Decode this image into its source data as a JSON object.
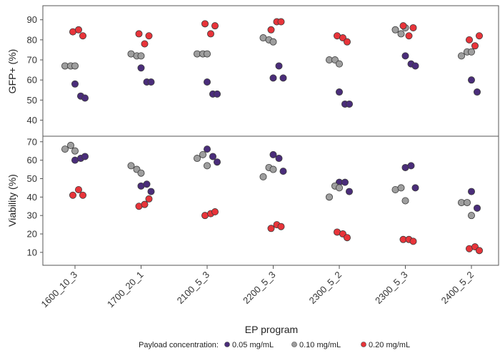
{
  "chart_data": {
    "type": "scatter",
    "xlabel": "EP program",
    "categories": [
      "1600_10_3",
      "1700_20_1",
      "2100_5_3",
      "2200_5_3",
      "2300_5_2",
      "2300_5_3",
      "2400_5_2"
    ],
    "legend": {
      "title": "Payload concentration:",
      "placement": "bottom",
      "entries": [
        {
          "label": "0.05 mg/mL",
          "color": "#4a2d7a"
        },
        {
          "label": "0.10 mg/mL",
          "color": "#9e9e9e"
        },
        {
          "label": "0.20 mg/mL",
          "color": "#e8343a"
        }
      ]
    },
    "panels": [
      {
        "ylabel": "GFP+ (%)",
        "ylim": [
          32,
          97
        ],
        "yticks": [
          40,
          50,
          60,
          70,
          80,
          90
        ],
        "series": [
          {
            "name": "0.05 mg/mL",
            "color": "#4a2d7a",
            "points": [
              {
                "x": "1600_10_3",
                "y": [
                  58,
                  52,
                  51
                ]
              },
              {
                "x": "1700_20_1",
                "y": [
                  66,
                  59,
                  59
                ]
              },
              {
                "x": "2100_5_3",
                "y": [
                  59,
                  53,
                  53
                ]
              },
              {
                "x": "2200_5_3",
                "y": [
                  61,
                  67,
                  61
                ]
              },
              {
                "x": "2300_5_2",
                "y": [
                  54,
                  48,
                  48
                ]
              },
              {
                "x": "2300_5_3",
                "y": [
                  72,
                  68,
                  67
                ]
              },
              {
                "x": "2400_5_2",
                "y": [
                  60,
                  54
                ]
              }
            ]
          },
          {
            "name": "0.10 mg/mL",
            "color": "#9e9e9e",
            "points": [
              {
                "x": "1600_10_3",
                "y": [
                  67,
                  67,
                  67
                ]
              },
              {
                "x": "1700_20_1",
                "y": [
                  73,
                  72,
                  72
                ]
              },
              {
                "x": "2100_5_3",
                "y": [
                  73,
                  73,
                  73
                ]
              },
              {
                "x": "2200_5_3",
                "y": [
                  81,
                  80,
                  79
                ]
              },
              {
                "x": "2300_5_2",
                "y": [
                  70,
                  70,
                  68
                ]
              },
              {
                "x": "2300_5_3",
                "y": [
                  85,
                  83,
                  86
                ]
              },
              {
                "x": "2400_5_2",
                "y": [
                  72,
                  74,
                  74
                ]
              }
            ]
          },
          {
            "name": "0.20 mg/mL",
            "color": "#e8343a",
            "points": [
              {
                "x": "1600_10_3",
                "y": [
                  84,
                  85,
                  82
                ]
              },
              {
                "x": "1700_20_1",
                "y": [
                  83,
                  78,
                  82
                ]
              },
              {
                "x": "2100_5_3",
                "y": [
                  88,
                  83,
                  87
                ]
              },
              {
                "x": "2200_5_3",
                "y": [
                  85,
                  89,
                  89
                ]
              },
              {
                "x": "2300_5_2",
                "y": [
                  82,
                  81,
                  79
                ]
              },
              {
                "x": "2300_5_3",
                "y": [
                  87,
                  82,
                  86
                ]
              },
              {
                "x": "2400_5_2",
                "y": [
                  80,
                  77,
                  82
                ]
              }
            ]
          }
        ]
      },
      {
        "ylabel": "Viability (%)",
        "ylim": [
          3,
          73
        ],
        "yticks": [
          10,
          20,
          30,
          40,
          50,
          60,
          70
        ],
        "series": [
          {
            "name": "0.05 mg/mL",
            "color": "#4a2d7a",
            "points": [
              {
                "x": "1600_10_3",
                "y": [
                  60,
                  61,
                  62
                ]
              },
              {
                "x": "1700_20_1",
                "y": [
                  46,
                  47,
                  43
                ]
              },
              {
                "x": "2100_5_3",
                "y": [
                  66,
                  62,
                  59
                ]
              },
              {
                "x": "2200_5_3",
                "y": [
                  63,
                  61,
                  54
                ]
              },
              {
                "x": "2300_5_2",
                "y": [
                  48,
                  48,
                  43
                ]
              },
              {
                "x": "2300_5_3",
                "y": [
                  56,
                  57,
                  45
                ]
              },
              {
                "x": "2400_5_2",
                "y": [
                  43,
                  34
                ]
              }
            ]
          },
          {
            "name": "0.10 mg/mL",
            "color": "#9e9e9e",
            "points": [
              {
                "x": "1600_10_3",
                "y": [
                  66,
                  68,
                  65
                ]
              },
              {
                "x": "1700_20_1",
                "y": [
                  57,
                  55,
                  53
                ]
              },
              {
                "x": "2100_5_3",
                "y": [
                  61,
                  63,
                  57
                ]
              },
              {
                "x": "2200_5_3",
                "y": [
                  51,
                  56,
                  55
                ]
              },
              {
                "x": "2300_5_2",
                "y": [
                  40,
                  46,
                  45
                ]
              },
              {
                "x": "2300_5_3",
                "y": [
                  44,
                  45,
                  38
                ]
              },
              {
                "x": "2400_5_2",
                "y": [
                  37,
                  37,
                  30
                ]
              }
            ]
          },
          {
            "name": "0.20 mg/mL",
            "color": "#e8343a",
            "points": [
              {
                "x": "1600_10_3",
                "y": [
                  41,
                  44,
                  41
                ]
              },
              {
                "x": "1700_20_1",
                "y": [
                  35,
                  36,
                  39
                ]
              },
              {
                "x": "2100_5_3",
                "y": [
                  30,
                  31,
                  32
                ]
              },
              {
                "x": "2200_5_3",
                "y": [
                  23,
                  25,
                  24
                ]
              },
              {
                "x": "2300_5_2",
                "y": [
                  21,
                  20,
                  18
                ]
              },
              {
                "x": "2300_5_3",
                "y": [
                  17,
                  17,
                  16
                ]
              },
              {
                "x": "2400_5_2",
                "y": [
                  12,
                  13,
                  11
                ]
              }
            ]
          }
        ]
      }
    ]
  }
}
